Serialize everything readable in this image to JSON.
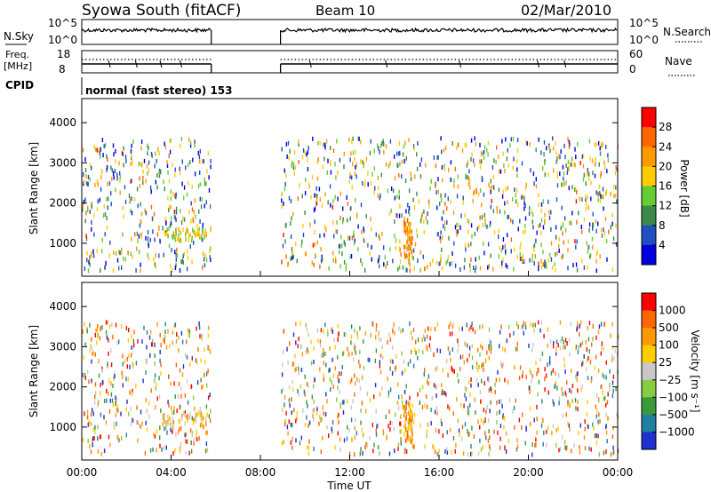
{
  "header": {
    "station": "Syowa South (fitACF)",
    "beam": "Beam 10",
    "date": "02/Mar/2010"
  },
  "panels": {
    "nsky_label": "N.Sky",
    "nsky_ticks": [
      "10^5",
      "10^0"
    ],
    "nsearch_label": "N.Search",
    "freq_label": "Freq.",
    "freq_unit": "[MHz]",
    "freq_ticks": [
      "18",
      "8"
    ],
    "nave_label": "Nave",
    "nave_ticks": [
      "60",
      "0"
    ],
    "cpid_label": "CPID",
    "cpid_text": "normal (fast stereo) 153"
  },
  "power_colorbar": {
    "label": "Power [dB]",
    "ticks": [
      "4",
      "8",
      "12",
      "16",
      "20",
      "24",
      "28"
    ],
    "colors": [
      "#0000e0",
      "#2050c0",
      "#3a8a4a",
      "#66cc33",
      "#ffcc00",
      "#ff9900",
      "#ff6600",
      "#ff0000"
    ]
  },
  "velocity_colorbar": {
    "label": "Velocity [m s⁻¹]",
    "ticks": [
      "1000",
      "500",
      "100",
      "25",
      "−25",
      "−100",
      "−500",
      "−1000"
    ],
    "colors": [
      "#2030d0",
      "#2080a0",
      "#3a9a3a",
      "#88cc44",
      "#c8c8c8",
      "#ffcc00",
      "#ff9900",
      "#ff6600",
      "#ff0000"
    ]
  },
  "xaxis": {
    "label": "Time UT",
    "ticks": [
      "00:00",
      "04:00",
      "08:00",
      "12:00",
      "16:00",
      "20:00",
      "00:00"
    ]
  },
  "chart_data": [
    {
      "type": "heatmap",
      "title": "Power",
      "xlabel": "Time UT",
      "ylabel": "Slant Range [km]",
      "xlim_hours": [
        0,
        24
      ],
      "ylim": [
        180,
        4600
      ],
      "yticks": [
        1000,
        2000,
        3000,
        4000
      ],
      "data_gap_hours": [
        5.8,
        8.9
      ],
      "colorbar_ticks_db": [
        4,
        8,
        12,
        16,
        20,
        24,
        28
      ]
    },
    {
      "type": "heatmap",
      "title": "Velocity",
      "xlabel": "Time UT",
      "ylabel": "Slant Range [km]",
      "xlim_hours": [
        0,
        24
      ],
      "ylim": [
        180,
        4600
      ],
      "yticks": [
        1000,
        2000,
        3000,
        4000
      ],
      "data_gap_hours": [
        5.8,
        8.9
      ],
      "colorbar_ticks_ms": [
        1000,
        500,
        100,
        25,
        -25,
        -100,
        -500,
        -1000
      ]
    },
    {
      "type": "line",
      "title": "N.Sky",
      "xlim_hours": [
        0,
        24
      ],
      "ylim": [
        "10^0",
        "10^5"
      ],
      "data_gap_hours": [
        5.8,
        8.9
      ]
    },
    {
      "type": "line",
      "title": "Freq.",
      "xlim_hours": [
        0,
        24
      ],
      "ylim": [
        8,
        18
      ],
      "data_gap_hours": [
        5.8,
        8.9
      ]
    }
  ]
}
